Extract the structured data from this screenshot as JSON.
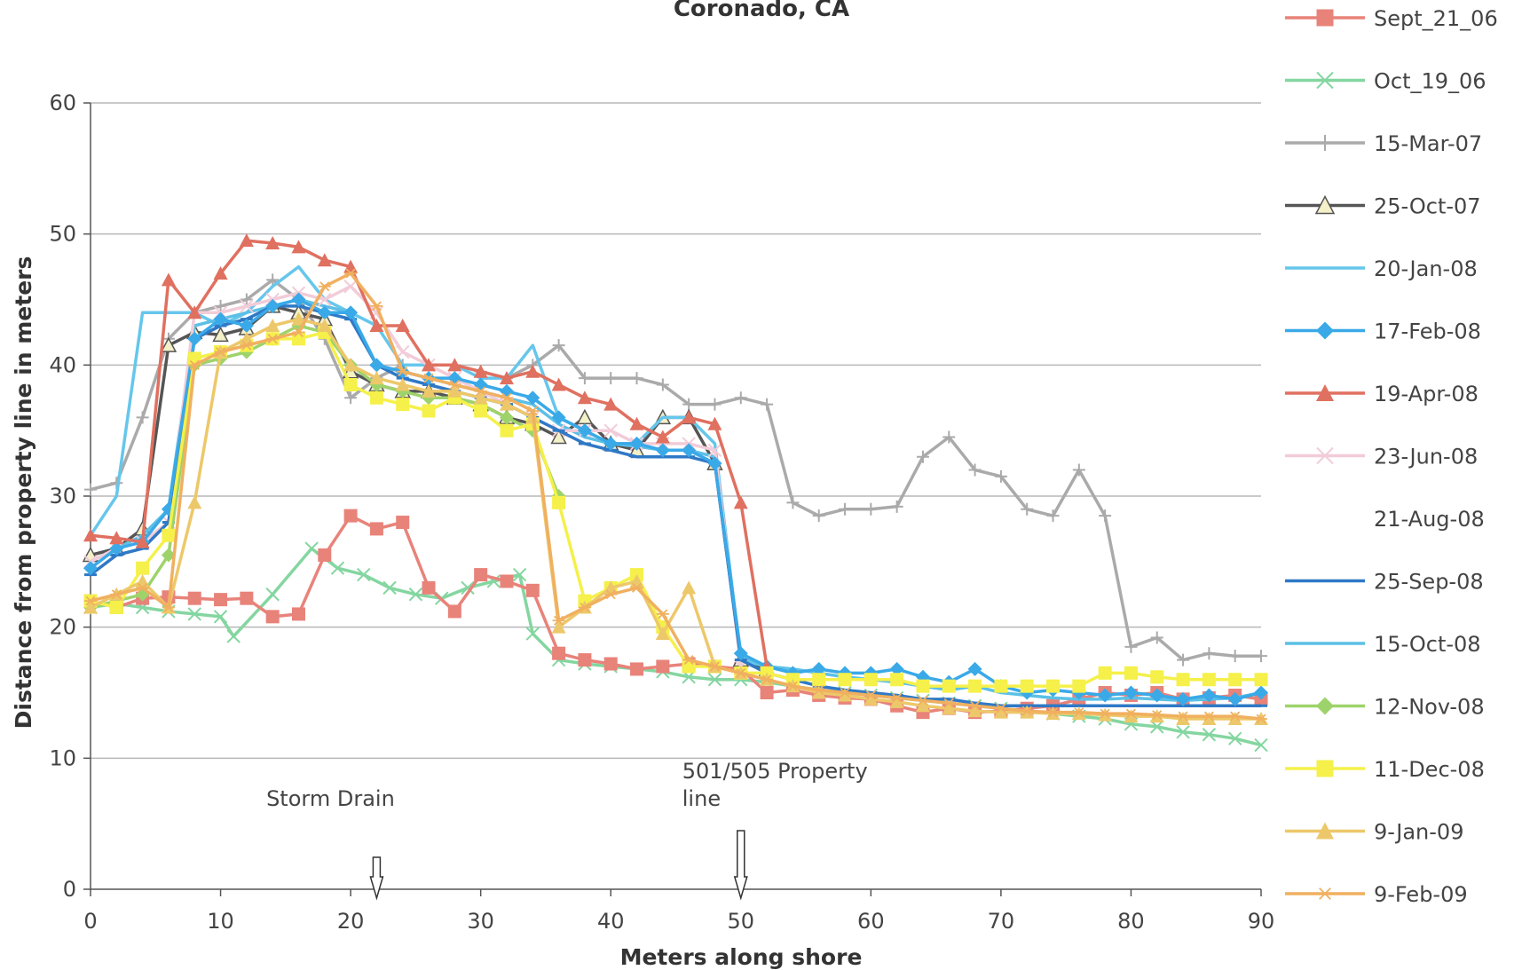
{
  "chart_data": {
    "type": "line",
    "title": "Coronado, CA",
    "xlabel": "Meters along shore",
    "ylabel": "Distance from property line in meters",
    "xlim": [
      0,
      90
    ],
    "ylim": [
      0,
      60
    ],
    "xticks": [
      "0",
      "10",
      "20",
      "30",
      "40",
      "50",
      "60",
      "70",
      "80",
      "90"
    ],
    "yticks": [
      "0",
      "10",
      "20",
      "30",
      "40",
      "50",
      "60"
    ],
    "grid": "horizontal",
    "legend": "right",
    "annotations": [
      {
        "text": "Storm Drain",
        "x": 22
      },
      {
        "text": "501/505 Property line",
        "x": 50
      }
    ],
    "series": [
      {
        "name": "Sept_21_06",
        "color": "#e8837a",
        "marker": "square",
        "x": [
          0,
          2,
          4,
          6,
          8,
          10,
          12,
          14,
          16,
          18,
          20,
          22,
          24,
          26,
          28,
          30,
          32,
          34,
          36,
          38,
          40,
          42,
          44,
          46,
          48,
          50,
          52,
          54,
          56,
          58,
          60,
          62,
          64,
          66,
          68,
          70,
          72,
          74,
          76,
          78,
          80,
          82,
          84,
          86,
          88,
          90
        ],
        "y": [
          22,
          21.5,
          22.2,
          22.3,
          22.2,
          22.1,
          22.2,
          20.8,
          21,
          25.5,
          28.5,
          27.5,
          28,
          23,
          21.2,
          24,
          23.5,
          22.8,
          18,
          17.5,
          17.2,
          16.8,
          17,
          17.2,
          17,
          16.8,
          15,
          15.2,
          14.8,
          14.6,
          14.5,
          14,
          13.5,
          13.8,
          13.5,
          13.6,
          13.8,
          14,
          14.5,
          15,
          14.8,
          15,
          14.5,
          14.6,
          14.8,
          14.5
        ]
      },
      {
        "name": "Oct_19_06",
        "color": "#84d6a0",
        "marker": "x",
        "x": [
          0,
          2,
          4,
          6,
          8,
          10,
          11,
          14,
          17,
          19,
          21,
          23,
          25,
          27,
          29,
          31,
          33,
          34,
          36,
          38,
          40,
          42,
          44,
          46,
          48,
          50,
          52,
          54,
          56,
          58,
          60,
          62,
          64,
          66,
          68,
          70,
          72,
          74,
          76,
          78,
          80,
          82,
          84,
          86,
          88,
          90
        ],
        "y": [
          21.5,
          21.8,
          21.5,
          21.2,
          21,
          20.8,
          19.3,
          22.5,
          26,
          24.5,
          24,
          23,
          22.5,
          22.2,
          23,
          23.5,
          24,
          19.5,
          17.5,
          17.2,
          17,
          16.8,
          16.6,
          16.2,
          16,
          16,
          15.8,
          15.5,
          15.2,
          15,
          14.8,
          14.6,
          14.4,
          14.2,
          14,
          13.8,
          13.6,
          13.4,
          13.2,
          13,
          12.6,
          12.4,
          12,
          11.8,
          11.5,
          11
        ]
      },
      {
        "name": "15-Mar-07",
        "color": "#aaaaaa",
        "marker": "plus",
        "x": [
          0,
          2,
          4,
          6,
          8,
          10,
          12,
          14,
          16,
          18,
          20,
          22,
          24,
          26,
          28,
          30,
          32,
          34,
          36,
          38,
          40,
          42,
          44,
          46,
          48,
          50,
          52,
          54,
          56,
          58,
          60,
          62,
          64,
          66,
          68,
          70,
          72,
          74,
          76,
          78,
          80,
          82,
          84,
          86,
          88,
          90
        ],
        "y": [
          30.5,
          31,
          36,
          42,
          44,
          44.5,
          45,
          46.5,
          45,
          42,
          37.5,
          39,
          40,
          40,
          40,
          39.5,
          39,
          40,
          41.5,
          39,
          39,
          39,
          38.5,
          37,
          37,
          37.5,
          37,
          29.5,
          28.5,
          29,
          29,
          29.2,
          33,
          34.5,
          32,
          31.5,
          29,
          28.5,
          32,
          28.5,
          18.5,
          19.2,
          17.5,
          18,
          17.8,
          17.8
        ]
      },
      {
        "name": "25-Oct-07",
        "color": "#555555",
        "marker": "triangle-open",
        "x": [
          0,
          2,
          4,
          6,
          8,
          10,
          12,
          14,
          16,
          18,
          20,
          22,
          24,
          26,
          28,
          30,
          32,
          34,
          36,
          38,
          40,
          42,
          44,
          46,
          48,
          50,
          52
        ],
        "y": [
          25.5,
          26,
          27.5,
          41.5,
          42.5,
          42.3,
          42.8,
          44.5,
          44,
          43.5,
          39.5,
          38.5,
          38,
          38,
          37.5,
          37,
          36,
          35.5,
          34.5,
          36,
          34,
          33.5,
          36,
          36,
          32.5,
          17.5,
          16.8
        ]
      },
      {
        "name": "20-Jan-08",
        "color": "#66c6ec",
        "marker": "none",
        "x": [
          0,
          2,
          4,
          6,
          8,
          10,
          12,
          14,
          16,
          18,
          20,
          22,
          24,
          26,
          28,
          30,
          32,
          34,
          36,
          38,
          40,
          42,
          44,
          46,
          48,
          50,
          52
        ],
        "y": [
          27,
          30,
          44,
          44,
          44,
          43,
          44,
          46,
          47.5,
          45,
          44,
          43,
          40,
          40,
          40,
          39,
          39,
          41.5,
          36,
          35,
          34,
          34,
          36,
          36,
          34,
          17.5,
          17
        ]
      },
      {
        "name": "17-Feb-08",
        "color": "#3aa9e8",
        "marker": "diamond",
        "x": [
          0,
          2,
          4,
          6,
          8,
          10,
          12,
          14,
          16,
          18,
          20,
          22,
          24,
          26,
          28,
          30,
          32,
          34,
          36,
          38,
          40,
          42,
          44,
          46,
          48,
          50,
          52,
          54,
          56,
          58,
          60,
          62,
          64,
          66,
          68,
          70,
          72,
          74,
          76,
          78,
          80,
          82,
          84,
          86,
          88,
          90
        ],
        "y": [
          24.5,
          26,
          26.5,
          29,
          42,
          43.5,
          43,
          44.5,
          45,
          44,
          44,
          40,
          39.5,
          39,
          39,
          38.5,
          38,
          37.5,
          36,
          35,
          34,
          34,
          33.5,
          33.5,
          32.5,
          18,
          17,
          16.5,
          16.8,
          16.5,
          16.5,
          16.8,
          16.2,
          15.8,
          16.8,
          15.5,
          15,
          15.2,
          15,
          14.8,
          15,
          14.8,
          14.5,
          14.8,
          14.5,
          15
        ]
      },
      {
        "name": "19-Apr-08",
        "color": "#e07060",
        "marker": "triangle",
        "x": [
          0,
          2,
          4,
          6,
          8,
          10,
          12,
          14,
          16,
          18,
          20,
          22,
          24,
          26,
          28,
          30,
          32,
          34,
          36,
          38,
          40,
          42,
          44,
          46,
          48,
          50,
          52
        ],
        "y": [
          27,
          26.8,
          26.5,
          46.5,
          44,
          47,
          49.5,
          49.3,
          49,
          48,
          47.5,
          43,
          43,
          40,
          40,
          39.5,
          39,
          39.5,
          38.5,
          37.5,
          37,
          35.5,
          34.5,
          36,
          35.5,
          29.5,
          17
        ]
      },
      {
        "name": "23-Jun-08",
        "color": "#f2ccd8",
        "marker": "x",
        "x": [
          0,
          2,
          4,
          6,
          8,
          10,
          12,
          14,
          16,
          18,
          20,
          22,
          24,
          26,
          28,
          30,
          32,
          34,
          36,
          38,
          40,
          42,
          44,
          46,
          48,
          50
        ],
        "y": [
          25,
          26,
          26.5,
          28,
          44,
          44,
          44.5,
          45,
          45.5,
          45,
          46,
          44,
          41,
          40,
          39,
          38,
          37,
          36,
          35,
          35,
          35,
          34,
          34,
          34,
          33.5,
          17
        ]
      },
      {
        "name": "21-Aug-08",
        "color": "#ffffff",
        "marker": "none",
        "x": [],
        "y": []
      },
      {
        "name": "25-Sep-08",
        "color": "#2f79c6",
        "marker": "dash",
        "x": [
          0,
          2,
          4,
          6,
          8,
          10,
          12,
          14,
          16,
          18,
          20,
          22,
          24,
          26,
          28,
          30,
          32,
          34,
          36,
          38,
          40,
          42,
          44,
          46,
          48,
          50,
          52,
          54,
          56,
          58,
          60,
          62,
          64,
          66,
          68,
          70,
          72,
          74,
          76,
          78,
          80,
          82,
          84,
          86,
          88,
          90
        ],
        "y": [
          24,
          25.5,
          26,
          28,
          42,
          43,
          43.5,
          44.5,
          44.5,
          44,
          43.5,
          40,
          39,
          38.5,
          38,
          37.5,
          37,
          36,
          35,
          34,
          33.5,
          33,
          33,
          33,
          32.5,
          17.5,
          16.5,
          16,
          15.5,
          15.2,
          15,
          14.8,
          14.5,
          14.5,
          14.2,
          14,
          14,
          14,
          14,
          14,
          14,
          14,
          14,
          14,
          14,
          14
        ]
      },
      {
        "name": "15-Oct-08",
        "color": "#5cc0e6",
        "marker": "none",
        "x": [
          0,
          2,
          4,
          6,
          8,
          10,
          12,
          14,
          16,
          18,
          20,
          22,
          24,
          26,
          28,
          30,
          32,
          34,
          36,
          38,
          40,
          42,
          44,
          46,
          48,
          50,
          52,
          54,
          56,
          58,
          60,
          62,
          64,
          66,
          68,
          70,
          72,
          74,
          76,
          78,
          80,
          82,
          84,
          86,
          88,
          90
        ],
        "y": [
          25,
          26,
          27,
          29,
          43,
          43.5,
          44,
          44.5,
          45,
          44.5,
          44,
          40,
          39.5,
          39,
          38.5,
          38,
          37.5,
          37,
          35.5,
          34.5,
          34,
          33.8,
          33.5,
          33.5,
          33,
          17.8,
          17,
          16.8,
          16.5,
          16.2,
          16,
          15.8,
          15.5,
          15.2,
          15.5,
          15,
          14.8,
          14.6,
          14.5,
          14.5,
          14.6,
          14.5,
          14.4,
          14.5,
          14.6,
          15
        ]
      },
      {
        "name": "12-Nov-08",
        "color": "#9ed36b",
        "marker": "diamond",
        "x": [
          0,
          2,
          4,
          6,
          8,
          10,
          12,
          14,
          16,
          18,
          20,
          22,
          24,
          26,
          28,
          30,
          32,
          34,
          36
        ],
        "y": [
          21.5,
          22,
          22.5,
          25.5,
          40,
          40.5,
          41,
          42,
          43,
          42.5,
          40,
          38.5,
          38,
          37.5,
          37.5,
          37,
          36,
          35,
          30
        ]
      },
      {
        "name": "11-Dec-08",
        "color": "#f5f04a",
        "marker": "square",
        "x": [
          0,
          2,
          4,
          6,
          8,
          10,
          12,
          14,
          16,
          18,
          20,
          22,
          24,
          26,
          28,
          30,
          32,
          34,
          36,
          38,
          40,
          42,
          44,
          46,
          48,
          50,
          52,
          54,
          56,
          58,
          60,
          62,
          64,
          66,
          68,
          70,
          72,
          74,
          76,
          78,
          80,
          82,
          84,
          86,
          88,
          90
        ],
        "y": [
          22,
          21.5,
          24.5,
          27,
          40.5,
          41,
          41.5,
          42,
          42,
          42.5,
          38.5,
          37.5,
          37,
          36.5,
          37.5,
          36.5,
          35,
          35.5,
          29.5,
          22,
          23,
          24,
          20,
          17,
          17,
          16.5,
          16.5,
          16,
          16,
          16,
          16,
          16,
          15.5,
          15.5,
          15.5,
          15.5,
          15.5,
          15.5,
          15.5,
          16.5,
          16.5,
          16.2,
          16,
          16,
          16,
          16
        ]
      },
      {
        "name": "9-Jan-09",
        "color": "#edc86a",
        "marker": "triangle",
        "x": [
          0,
          2,
          4,
          6,
          8,
          10,
          12,
          14,
          16,
          18,
          20,
          22,
          24,
          26,
          28,
          30,
          32,
          34,
          36,
          38,
          40,
          42,
          44,
          46,
          48,
          50,
          52,
          54,
          56,
          58,
          60,
          62,
          64,
          66,
          68,
          70,
          72,
          74,
          76,
          78,
          80,
          82,
          84,
          86,
          88,
          90
        ],
        "y": [
          21.5,
          22.5,
          23.5,
          21.5,
          29.5,
          41,
          42,
          43,
          43.5,
          43,
          40,
          39,
          38.5,
          38,
          38,
          37.5,
          37,
          36,
          20,
          21.5,
          23,
          23.5,
          19.5,
          23,
          17,
          16.5,
          16,
          15.5,
          15,
          14.8,
          14.5,
          14.3,
          14,
          13.8,
          13.6,
          13.5,
          13.5,
          13.4,
          13.4,
          13.3,
          13.2,
          13.2,
          13,
          13,
          13,
          13
        ]
      },
      {
        "name": "9-Feb-09",
        "color": "#f0b060",
        "marker": "asterisk",
        "x": [
          0,
          2,
          4,
          6,
          8,
          10,
          12,
          14,
          16,
          18,
          20,
          22,
          24,
          26,
          28,
          30,
          32,
          34,
          36,
          38,
          40,
          42,
          44,
          46,
          48,
          50,
          52,
          54,
          56,
          58,
          60,
          62,
          64,
          66,
          68,
          70,
          72,
          74,
          76,
          78,
          80,
          82,
          84,
          86,
          88,
          90
        ],
        "y": [
          22,
          22.5,
          23,
          21.5,
          40,
          41,
          41.5,
          42,
          42.5,
          46,
          47,
          44.5,
          39.5,
          39,
          38.5,
          38,
          37.5,
          36.5,
          20.5,
          21.5,
          22.5,
          23,
          21,
          17.5,
          17,
          16.5,
          16,
          15.5,
          15.2,
          15,
          14.8,
          14.6,
          14.4,
          14.2,
          14,
          13.8,
          13.6,
          13.5,
          13.5,
          13.4,
          13.4,
          13.3,
          13.2,
          13.2,
          13.2,
          13
        ]
      }
    ]
  }
}
